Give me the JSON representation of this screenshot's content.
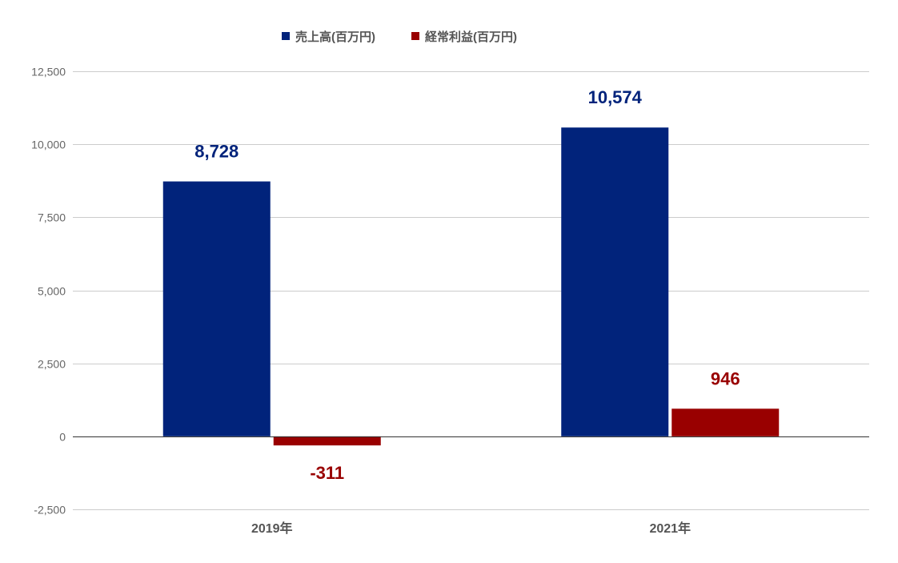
{
  "chart_data": {
    "type": "bar",
    "categories": [
      "2019年",
      "2021年"
    ],
    "series": [
      {
        "name": "売上高(百万円)",
        "values": [
          8728,
          10574
        ],
        "labels": [
          "8,728",
          "10,574"
        ],
        "color": "#01237b"
      },
      {
        "name": "経常利益(百万円)",
        "values": [
          -311,
          946
        ],
        "labels": [
          "-311",
          "946"
        ],
        "color": "#990000"
      }
    ],
    "ylim": [
      -2500,
      12500
    ],
    "yticks": [
      -2500,
      0,
      2500,
      5000,
      7500,
      10000,
      12500
    ],
    "ytick_labels": [
      "-2,500",
      "0",
      "2,500",
      "5,000",
      "7,500",
      "10,000",
      "12,500"
    ],
    "title": "",
    "xlabel": "",
    "ylabel": "",
    "grid": true,
    "legend_position": "top"
  }
}
